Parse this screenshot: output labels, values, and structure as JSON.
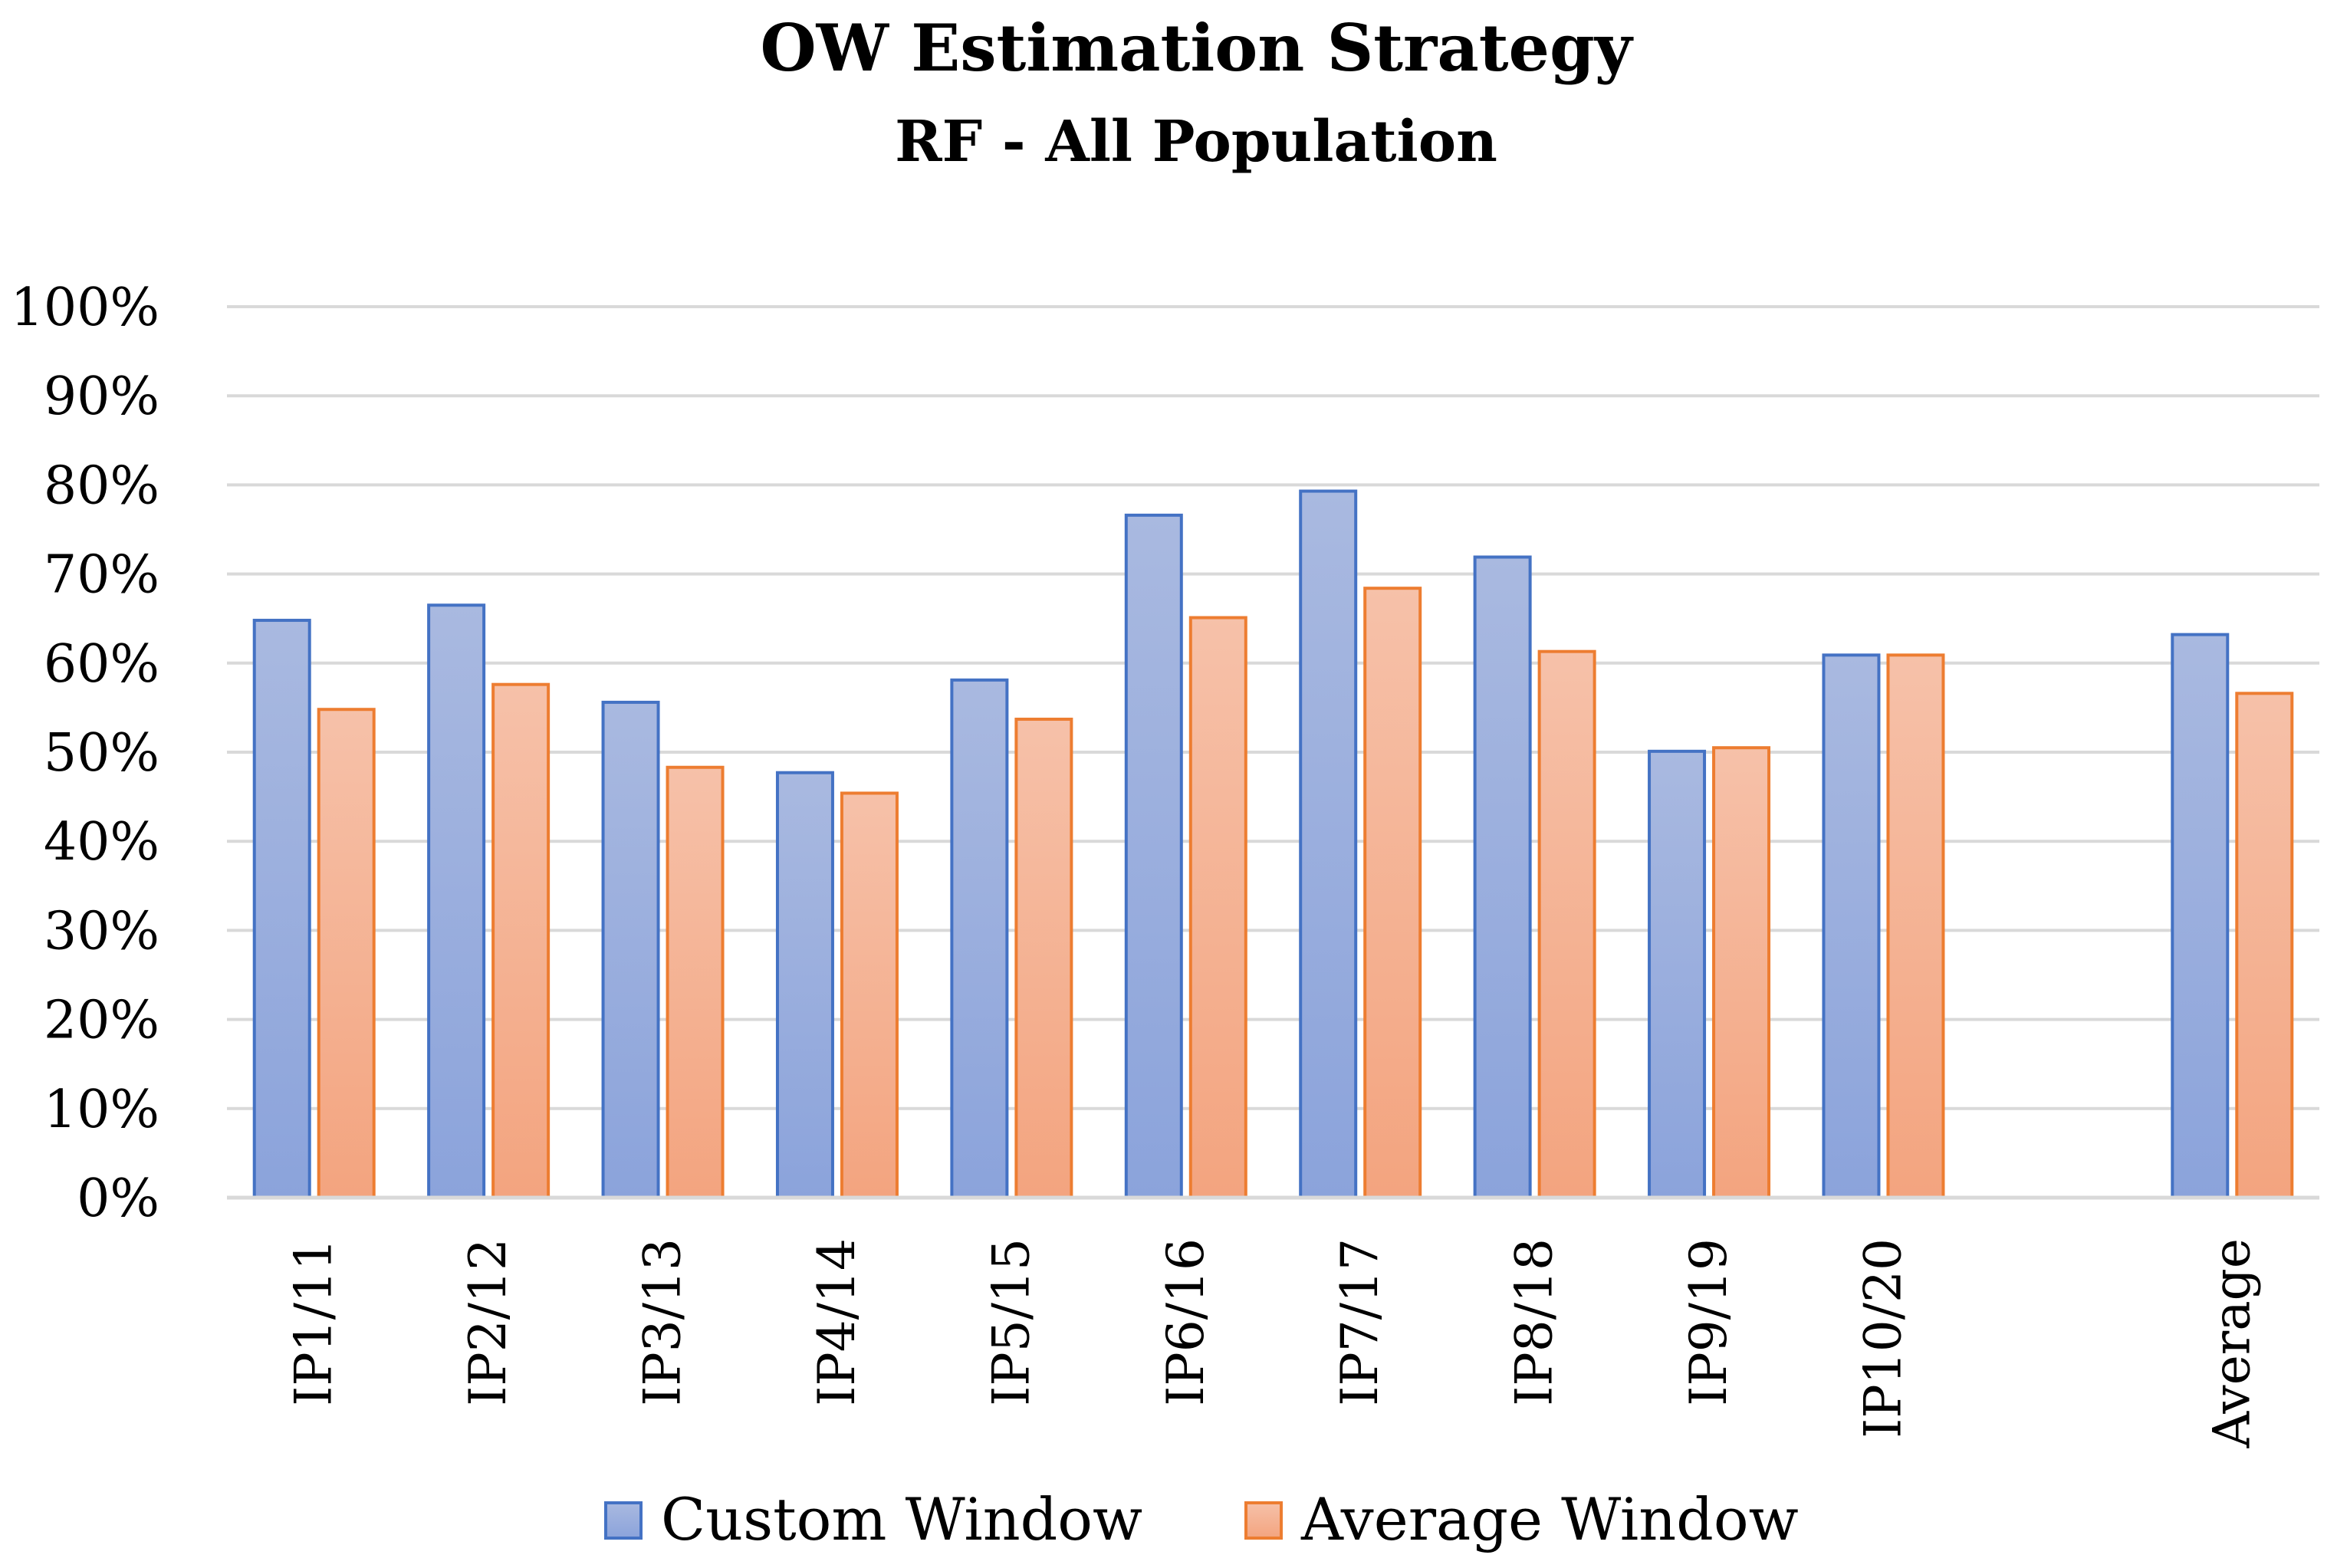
{
  "chart_data": {
    "type": "bar",
    "title": "OW Estimation Strategy",
    "subtitle": "RF - All Population",
    "xlabel": "",
    "ylabel": "",
    "ylim": [
      0,
      100
    ],
    "ytick_step": 10,
    "ytick_suffix": "%",
    "grid": true,
    "legend_position": "bottom",
    "categories": [
      "IP1/11",
      "IP2/12",
      "IP3/13",
      "IP4/14",
      "IP5/15",
      "IP6/16",
      "IP7/17",
      "IP8/18",
      "IP9/19",
      "IP10/20",
      "",
      "Average"
    ],
    "series": [
      {
        "name": "Custom Window",
        "color": "#4472C4",
        "fill_top": "#A9B9E0",
        "fill_bottom": "#8BA3DB",
        "values": [
          64.8,
          66.5,
          55.6,
          47.7,
          58.1,
          76.6,
          79.3,
          71.9,
          50.1,
          60.9,
          null,
          63.2
        ]
      },
      {
        "name": "Average Window",
        "color": "#ED7D31",
        "fill_top": "#F6C1A9",
        "fill_bottom": "#F3A47F",
        "values": [
          54.8,
          57.6,
          48.3,
          45.4,
          53.7,
          65.1,
          68.4,
          61.3,
          50.5,
          60.9,
          null,
          56.6
        ]
      }
    ]
  }
}
